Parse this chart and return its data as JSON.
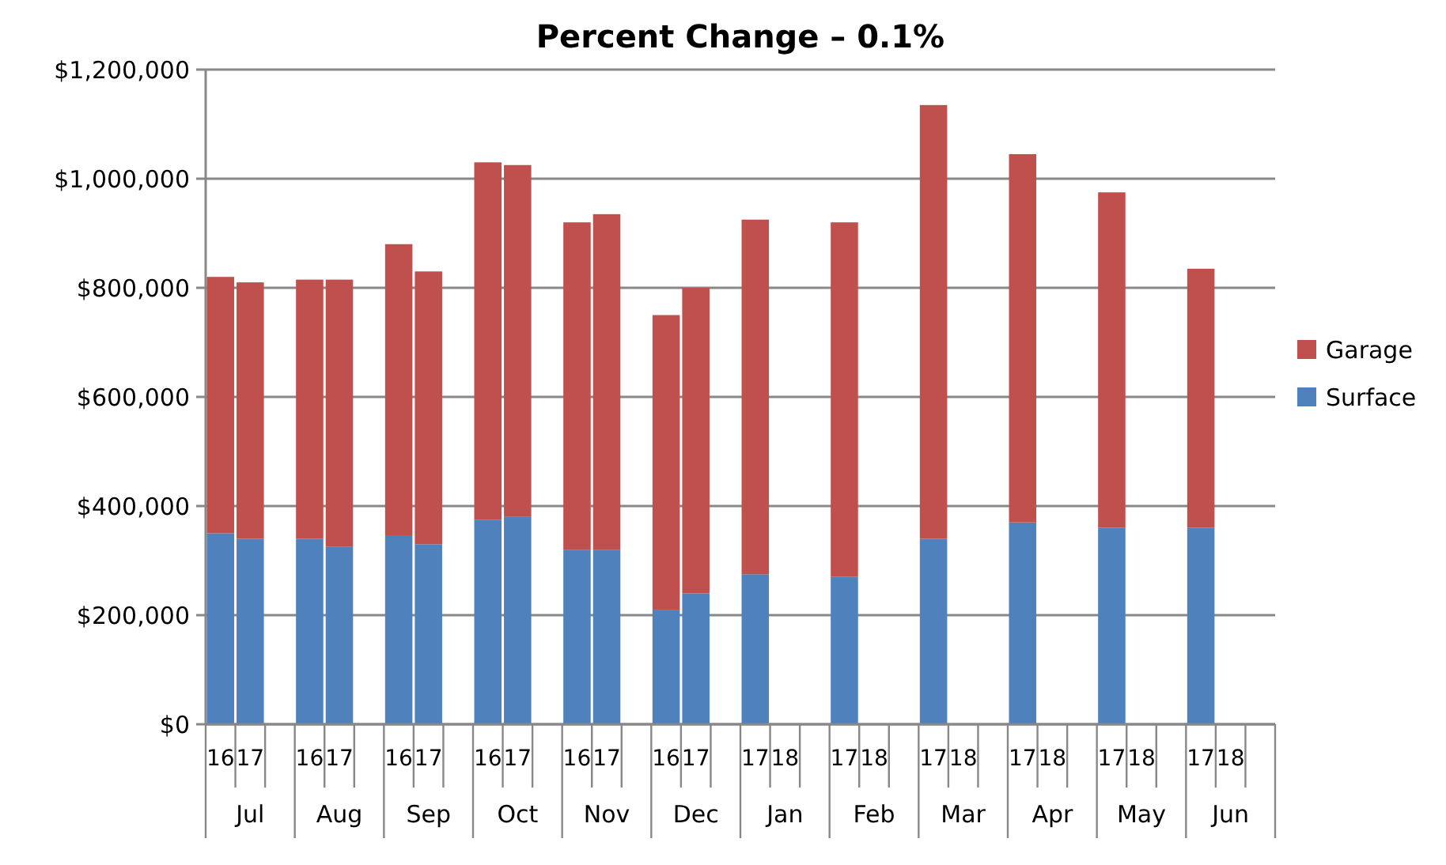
{
  "chart_data": {
    "type": "bar",
    "title": "Percent Change – 0.1%",
    "stacked": true,
    "categories": [
      "16",
      "17",
      null,
      "16",
      "17",
      null,
      "16",
      "17",
      null,
      "16",
      "17",
      null,
      "16",
      "17",
      null,
      "16",
      "17",
      null,
      "17",
      "18",
      null,
      "17",
      "18",
      null,
      "17",
      "18",
      null,
      "17",
      "18",
      null,
      "17",
      "18",
      null,
      "17",
      "18",
      null
    ],
    "series": [
      {
        "name": "Surface",
        "color": "#4f81bd",
        "values": [
          350000,
          340000,
          null,
          340000,
          325000,
          null,
          345000,
          330000,
          null,
          375000,
          380000,
          null,
          320000,
          320000,
          null,
          210000,
          240000,
          null,
          275000,
          null,
          null,
          270000,
          null,
          null,
          340000,
          null,
          null,
          370000,
          null,
          null,
          360000,
          null,
          null,
          360000,
          null,
          null
        ]
      },
      {
        "name": "Garage",
        "color": "#c0504d",
        "values": [
          470000,
          470000,
          null,
          475000,
          490000,
          null,
          535000,
          500000,
          null,
          655000,
          645000,
          null,
          600000,
          615000,
          null,
          540000,
          560000,
          null,
          650000,
          null,
          null,
          650000,
          null,
          null,
          795000,
          null,
          null,
          675000,
          null,
          null,
          615000,
          null,
          null,
          475000,
          null,
          null
        ]
      }
    ],
    "ylim": [
      0,
      1200000
    ],
    "yticks": [
      {
        "value": 0,
        "label": "$0"
      },
      {
        "value": 200000,
        "label": "$200,000"
      },
      {
        "value": 400000,
        "label": "$400,000"
      },
      {
        "value": 600000,
        "label": "$600,000"
      },
      {
        "value": 800000,
        "label": "$800,000"
      },
      {
        "value": 1000000,
        "label": "$1,000,000"
      },
      {
        "value": 1200000,
        "label": "$1,200,000"
      }
    ],
    "grid": "y",
    "legend": "right",
    "annotations": [
      "Jul",
      "Aug",
      "Sep",
      "Oct",
      "Nov",
      "Dec",
      "Jan",
      "Feb",
      "Mar",
      "Apr",
      "May",
      "Jun"
    ]
  }
}
